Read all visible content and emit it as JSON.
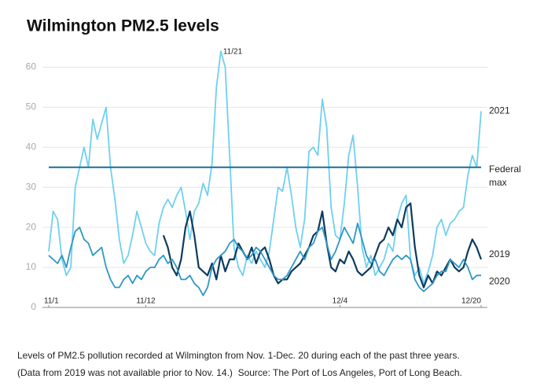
{
  "chart_data": {
    "type": "line",
    "title": "Wilmington PM2.5 levels",
    "x": [
      0,
      0.5,
      1,
      1.5,
      2,
      2.5,
      3,
      3.5,
      4,
      4.5,
      5,
      5.5,
      6,
      6.5,
      7,
      7.5,
      8,
      8.5,
      9,
      9.5,
      10,
      10.5,
      11,
      11.5,
      12,
      12.5,
      13,
      13.5,
      14,
      14.5,
      15,
      15.5,
      16,
      16.5,
      17,
      17.5,
      18,
      18.5,
      19,
      19.5,
      20,
      20.5,
      21,
      21.5,
      22,
      22.5,
      23,
      23.5,
      24,
      24.5,
      25,
      25.5,
      26,
      26.5,
      27,
      27.5,
      28,
      28.5,
      29,
      29.5,
      30,
      30.5,
      31,
      31.5,
      32,
      32.5,
      33,
      33.5,
      34,
      34.5,
      35,
      35.5,
      36,
      36.5,
      37,
      37.5,
      38,
      38.5,
      39,
      39.5,
      40,
      40.5,
      41,
      41.5,
      42,
      42.5,
      43,
      43.5,
      44,
      44.5,
      45,
      45.5,
      46,
      46.5,
      47,
      47.5,
      48,
      48.5,
      49
    ],
    "series": [
      {
        "name": "2021",
        "color": "#6fd0f0",
        "values": [
          14,
          24,
          22,
          12,
          8,
          10,
          30,
          35,
          40,
          35,
          47,
          42,
          46,
          50,
          35,
          27,
          17,
          11,
          13,
          18,
          24,
          20,
          16,
          14,
          13,
          21,
          25,
          27,
          25,
          28,
          30,
          24,
          17,
          24,
          26,
          31,
          28,
          36,
          55,
          64,
          60,
          38,
          15,
          10,
          8,
          13,
          11,
          14,
          12,
          10,
          14,
          22,
          30,
          29,
          35,
          28,
          20,
          15,
          22,
          39,
          40,
          38,
          52,
          45,
          25,
          18,
          17,
          26,
          38,
          43,
          30,
          15,
          10,
          13,
          8,
          10,
          12,
          16,
          14,
          22,
          26,
          28,
          12,
          8,
          10,
          6,
          9,
          13,
          20,
          22,
          18,
          21,
          22,
          24,
          25,
          33,
          38,
          35,
          49
        ]
      },
      {
        "name": "2019",
        "color": "#0d3b5e",
        "values": [
          null,
          null,
          null,
          null,
          null,
          null,
          null,
          null,
          null,
          null,
          null,
          null,
          null,
          null,
          null,
          null,
          null,
          null,
          null,
          null,
          null,
          null,
          null,
          null,
          null,
          null,
          18,
          15,
          10,
          8,
          12,
          20,
          24,
          18,
          10,
          9,
          8,
          11,
          7,
          13,
          9,
          12,
          12,
          16,
          14,
          12,
          15,
          11,
          14,
          15,
          12,
          8,
          6,
          7,
          7,
          9,
          10,
          11,
          13,
          15,
          18,
          19,
          24,
          16,
          10,
          9,
          12,
          11,
          14,
          12,
          9,
          8,
          9,
          10,
          13,
          16,
          17,
          20,
          18,
          22,
          20,
          25,
          26,
          15,
          8,
          5,
          8,
          6,
          9,
          8,
          10,
          12,
          10,
          9,
          10,
          14,
          17,
          15,
          12
        ]
      },
      {
        "name": "2020",
        "color": "#2e97c4",
        "values": [
          13,
          12,
          11,
          13,
          10,
          15,
          19,
          20,
          17,
          16,
          13,
          14,
          15,
          10,
          7,
          5,
          5,
          7,
          8,
          6,
          8,
          7,
          9,
          10,
          10,
          12,
          13,
          11,
          12,
          10,
          7,
          7,
          8,
          6,
          5,
          3,
          5,
          10,
          12,
          13,
          14,
          16,
          17,
          15,
          14,
          12,
          13,
          15,
          14,
          12,
          10,
          8,
          7,
          7,
          8,
          10,
          12,
          14,
          12,
          15,
          16,
          19,
          20,
          16,
          12,
          14,
          17,
          20,
          18,
          16,
          21,
          17,
          13,
          11,
          12,
          9,
          8,
          10,
          12,
          13,
          12,
          13,
          12,
          7,
          5,
          4,
          5,
          6,
          8,
          9,
          9,
          12,
          11,
          10,
          12,
          10,
          7,
          8,
          8
        ]
      }
    ],
    "xlim": [
      0,
      49
    ],
    "xticks": [
      {
        "value": 0,
        "label": "11/1"
      },
      {
        "value": 11,
        "label": "11/12"
      },
      {
        "value": 33,
        "label": "12/4"
      },
      {
        "value": 49,
        "label": "12/20"
      }
    ],
    "ylim": [
      0,
      65
    ],
    "yticks": [
      0,
      10,
      20,
      30,
      40,
      50,
      60
    ],
    "grid": true,
    "reference_line": {
      "value": 35,
      "label": "Federal max",
      "color": "#1a6d99"
    },
    "annotations": [
      "11/21"
    ],
    "caption": [
      "Levels of PM2.5 pollution recorded at Wilmington from Nov. 1-Dec. 20 during each of the past three years.",
      "(Data from 2019 was not available prior to Nov. 14.)  Source: The Port of Los Angeles, Port of Long Beach."
    ]
  }
}
